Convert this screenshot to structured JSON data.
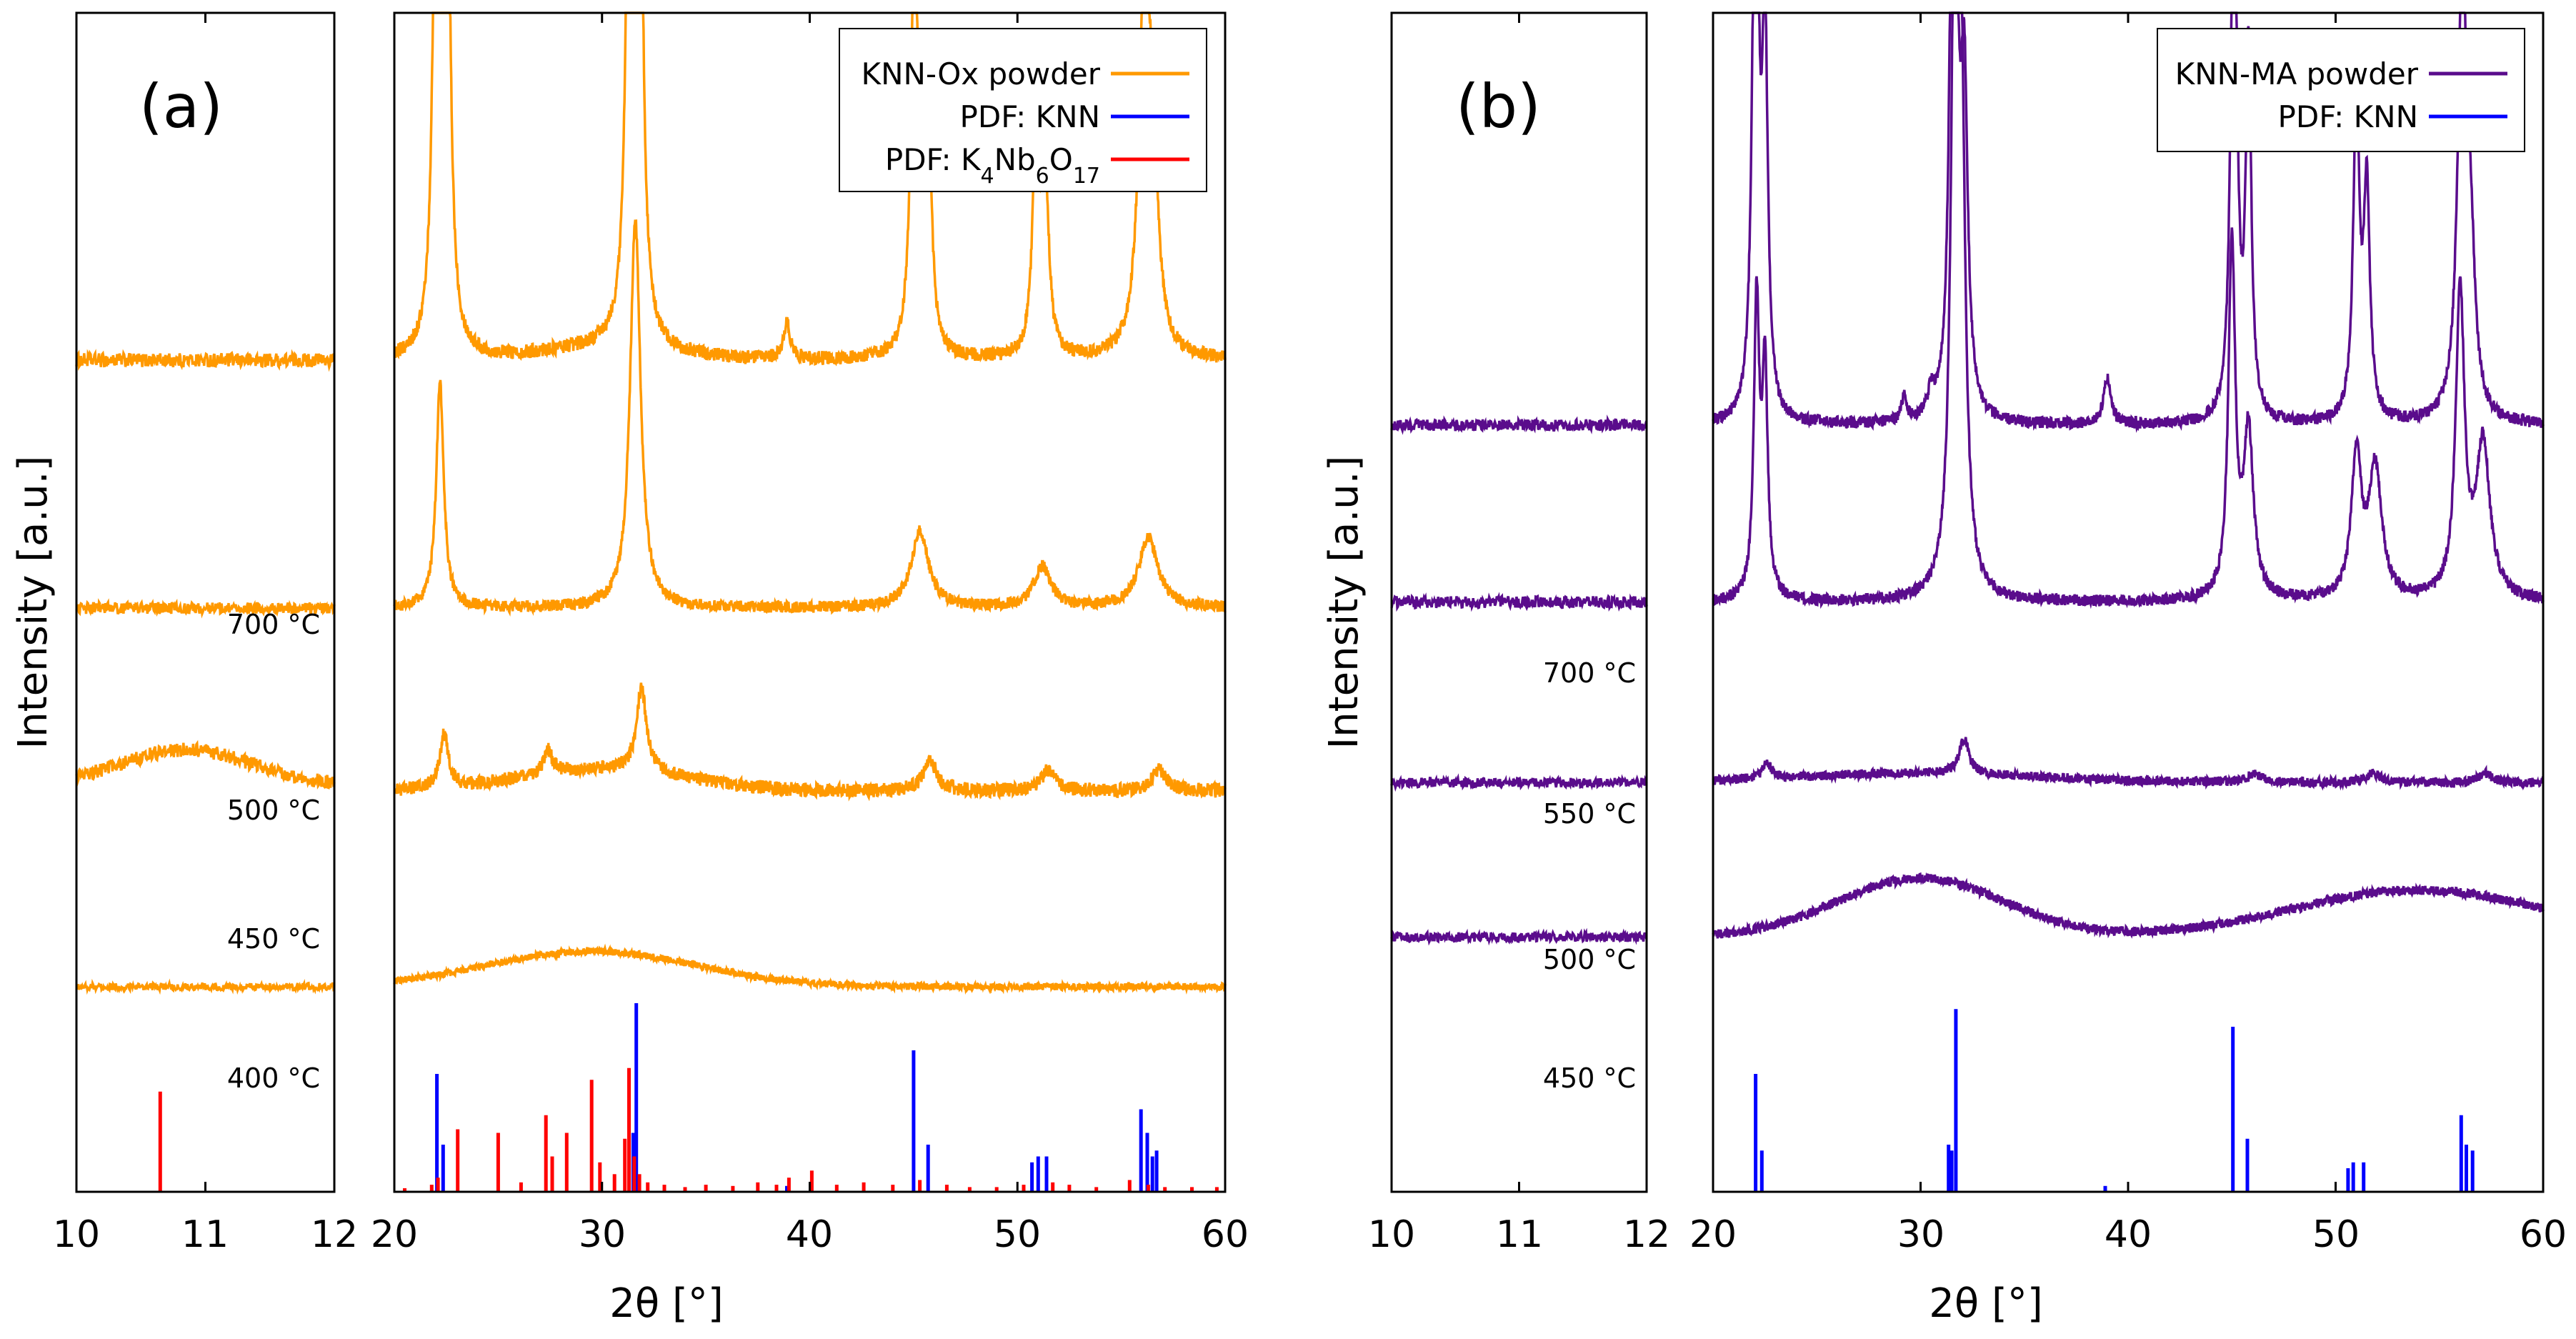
{
  "chart_data": [
    {
      "panel": "(a)",
      "type": "line",
      "title": "",
      "xlabel": "2θ [°]",
      "ylabel": "Intensity [a.u.]",
      "x_axis_segments": [
        {
          "xlim": [
            10,
            12
          ],
          "ticks": [
            "10",
            "11",
            "12"
          ]
        },
        {
          "xlim": [
            20,
            60
          ],
          "ticks": [
            "20",
            "30",
            "40",
            "50",
            "60"
          ]
        }
      ],
      "series_color": "#ff9900",
      "legend": {
        "position": "top-right",
        "entries": [
          {
            "label": "KNN-Ox powder",
            "color": "#ff9900",
            "html": "KNN-Ox powder"
          },
          {
            "label": "PDF: KNN",
            "color": "#0000ff",
            "html": "PDF: KNN"
          },
          {
            "label": "PDF: K4Nb6O17",
            "color": "#ff0000",
            "html": "PDF: K<tspan baseline-shift=\"sub\" font-size=\"30\">4</tspan>Nb<tspan baseline-shift=\"sub\" font-size=\"30\">6</tspan>O<tspan baseline-shift=\"sub\" font-size=\"30\">17</tspan>"
          }
        ]
      },
      "series": [
        {
          "name": "700 °C",
          "base": 0.705,
          "offset_left": 0.0,
          "noise": 0.006,
          "peaks": [
            [
              22.05,
              0.55,
              0.18
            ],
            [
              22.5,
              0.55,
              0.18
            ],
            [
              31.35,
              0.6,
              0.18
            ],
            [
              31.8,
              0.5,
              0.18
            ],
            [
              38.9,
              0.03,
              0.2
            ],
            [
              45.05,
              0.37,
              0.2
            ],
            [
              45.7,
              0.22,
              0.18
            ],
            [
              50.9,
              0.19,
              0.2
            ],
            [
              51.35,
              0.14,
              0.2
            ],
            [
              56.1,
              0.3,
              0.3
            ],
            [
              56.5,
              0.15,
              0.3
            ]
          ],
          "broad": [
            [
              30.2,
              0.01,
              3
            ]
          ]
        },
        {
          "name": "500 °C",
          "base": 0.495,
          "offset_left": 0.0,
          "noise": 0.005,
          "peaks": [
            [
              22.2,
              0.19,
              0.22
            ],
            [
              31.6,
              0.33,
              0.3
            ],
            [
              45.3,
              0.065,
              0.5
            ],
            [
              51.2,
              0.035,
              0.5
            ],
            [
              56.3,
              0.06,
              0.55
            ]
          ],
          "broad": []
        },
        {
          "name": "450 °C",
          "base": 0.34,
          "offset_left": 0.005,
          "noise": 0.006,
          "peaks": [
            [
              22.4,
              0.045,
              0.25
            ],
            [
              27.4,
              0.02,
              0.25
            ],
            [
              31.9,
              0.07,
              0.3
            ],
            [
              45.8,
              0.025,
              0.4
            ],
            [
              51.5,
              0.018,
              0.4
            ],
            [
              56.8,
              0.018,
              0.4
            ]
          ],
          "broad": [
            [
              10.85,
              0.03,
              0.5
            ],
            [
              30,
              0.018,
              4
            ]
          ]
        },
        {
          "name": "400 °C",
          "base": 0.174,
          "offset_left": 0.0,
          "noise": 0.003,
          "peaks": [],
          "broad": [
            [
              29.5,
              0.03,
              5
            ]
          ]
        }
      ],
      "reference_patterns": [
        {
          "name": "PDF: KNN",
          "color": "#0000ff",
          "x": [
            22.05,
            22.35,
            31.3,
            31.5,
            31.65,
            38.9,
            45.0,
            45.7,
            50.7,
            51.0,
            51.4,
            55.95,
            56.25,
            56.5,
            56.7
          ],
          "y": [
            0.1,
            0.04,
            0.04,
            0.05,
            0.16,
            0.005,
            0.12,
            0.04,
            0.025,
            0.03,
            0.03,
            0.07,
            0.05,
            0.03,
            0.035
          ]
        },
        {
          "name": "PDF: K4Nb6O17",
          "color": "#ff0000",
          "x": [
            10.65,
            20.5,
            21.8,
            22.1,
            23.05,
            25.0,
            26.1,
            27.3,
            27.6,
            28.3,
            29.5,
            29.9,
            30.6,
            31.1,
            31.3,
            31.55,
            31.8,
            32.2,
            33.0,
            34.0,
            35.0,
            36.3,
            37.5,
            38.4,
            39.0,
            40.1,
            41.3,
            42.6,
            44.0,
            45.3,
            46.6,
            47.7,
            49.0,
            50.3,
            51.7,
            52.5,
            53.8,
            55.4,
            56.3,
            57.1,
            58.4,
            59.6
          ],
          "y": [
            0.085,
            0.003,
            0.006,
            0.012,
            0.053,
            0.05,
            0.008,
            0.065,
            0.03,
            0.05,
            0.095,
            0.025,
            0.015,
            0.045,
            0.105,
            0.03,
            0.015,
            0.008,
            0.006,
            0.004,
            0.006,
            0.005,
            0.008,
            0.006,
            0.012,
            0.018,
            0.006,
            0.008,
            0.006,
            0.01,
            0.006,
            0.004,
            0.004,
            0.006,
            0.008,
            0.006,
            0.004,
            0.01,
            0.006,
            0.004,
            0.004,
            0.004
          ]
        }
      ]
    },
    {
      "panel": "(b)",
      "type": "line",
      "title": "",
      "xlabel": "2θ [°]",
      "ylabel": "Intensity [a.u.]",
      "x_axis_segments": [
        {
          "xlim": [
            10,
            12
          ],
          "ticks": [
            "10",
            "11",
            "12"
          ]
        },
        {
          "xlim": [
            20,
            60
          ],
          "ticks": [
            "20",
            "30",
            "40",
            "50",
            "60"
          ]
        }
      ],
      "series_color": "#5a0c8c",
      "legend": {
        "position": "top-right",
        "entries": [
          {
            "label": "KNN-MA powder",
            "color": "#5a0c8c",
            "html": "KNN-MA powder"
          },
          {
            "label": "PDF: KNN",
            "color": "#0000ff",
            "html": "PDF: KNN"
          }
        ]
      },
      "series": [
        {
          "name": "700 °C",
          "base": 0.65,
          "offset_left": 0.0,
          "noise": 0.005,
          "peaks": [
            [
              22.05,
              0.6,
              0.16
            ],
            [
              22.5,
              0.32,
              0.16
            ],
            [
              31.6,
              0.8,
              0.16
            ],
            [
              32.1,
              0.27,
              0.2
            ],
            [
              29.2,
              0.02,
              0.15
            ],
            [
              30.5,
              0.02,
              0.15
            ],
            [
              39.0,
              0.04,
              0.2
            ],
            [
              45.1,
              0.55,
              0.16
            ],
            [
              45.8,
              0.31,
              0.16
            ],
            [
              51.0,
              0.27,
              0.18
            ],
            [
              51.5,
              0.19,
              0.18
            ],
            [
              56.1,
              0.38,
              0.25
            ],
            [
              56.5,
              0.12,
              0.25
            ]
          ],
          "broad": []
        },
        {
          "name": "550 °C",
          "base": 0.5,
          "offset_left": 0.0,
          "noise": 0.005,
          "peaks": [
            [
              22.1,
              0.25,
              0.16
            ],
            [
              22.5,
              0.19,
              0.16
            ],
            [
              31.7,
              0.8,
              0.2
            ],
            [
              32.0,
              0.26,
              0.2
            ],
            [
              45.0,
              0.3,
              0.2
            ],
            [
              45.8,
              0.14,
              0.28
            ],
            [
              51.0,
              0.12,
              0.28
            ],
            [
              51.9,
              0.11,
              0.38
            ],
            [
              56.0,
              0.26,
              0.25
            ],
            [
              57.1,
              0.13,
              0.4
            ]
          ],
          "broad": []
        },
        {
          "name": "500 °C",
          "base": 0.347,
          "offset_left": 0.0,
          "noise": 0.004,
          "peaks": [
            [
              22.6,
              0.014,
              0.25
            ],
            [
              32.1,
              0.03,
              0.28
            ],
            [
              46.1,
              0.008,
              0.4
            ],
            [
              51.8,
              0.008,
              0.4
            ],
            [
              57.2,
              0.008,
              0.4
            ]
          ],
          "broad": [
            [
              30,
              0.008,
              6
            ]
          ]
        },
        {
          "name": "450 °C",
          "base": 0.216,
          "offset_left": 0.0,
          "noise": 0.004,
          "peaks": [],
          "broad": [
            [
              30,
              0.05,
              4
            ],
            [
              54,
              0.04,
              6
            ]
          ]
        }
      ],
      "reference_patterns": [
        {
          "name": "PDF: KNN",
          "color": "#0000ff",
          "x": [
            22.05,
            22.35,
            31.35,
            31.5,
            31.7,
            38.9,
            45.05,
            45.75,
            50.6,
            50.85,
            51.35,
            56.05,
            56.3,
            56.6
          ],
          "y": [
            0.1,
            0.035,
            0.04,
            0.035,
            0.155,
            0.005,
            0.14,
            0.045,
            0.02,
            0.025,
            0.025,
            0.065,
            0.04,
            0.035
          ]
        }
      ]
    }
  ]
}
